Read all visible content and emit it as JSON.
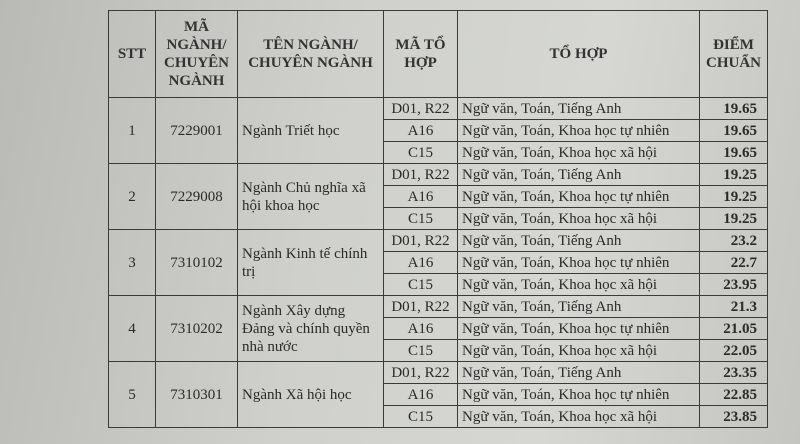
{
  "headers": {
    "stt": "STT",
    "ma_nganh": "MÃ NGÀNH/ CHUYÊN NGÀNH",
    "ten_nganh": "TÊN NGÀNH/ CHUYÊN NGÀNH",
    "ma_to_hop": "MÃ TỔ HỢP",
    "to_hop": "TỔ HỢP",
    "diem_chuan": "ĐIỂM CHUẨN"
  },
  "groups": [
    {
      "stt": "1",
      "code": "7229001",
      "name": "Ngành Triết học",
      "rows": [
        {
          "combo": "D01, R22",
          "subjects": "Ngữ văn, Toán, Tiếng Anh",
          "score": "19.65"
        },
        {
          "combo": "A16",
          "subjects": "Ngữ văn, Toán, Khoa học tự nhiên",
          "score": "19.65"
        },
        {
          "combo": "C15",
          "subjects": "Ngữ văn, Toán, Khoa học xã hội",
          "score": "19.65"
        }
      ]
    },
    {
      "stt": "2",
      "code": "7229008",
      "name": "Ngành Chủ nghĩa xã hội khoa học",
      "rows": [
        {
          "combo": "D01, R22",
          "subjects": "Ngữ văn, Toán, Tiếng Anh",
          "score": "19.25"
        },
        {
          "combo": "A16",
          "subjects": "Ngữ văn, Toán, Khoa học tự nhiên",
          "score": "19.25"
        },
        {
          "combo": "C15",
          "subjects": "Ngữ văn, Toán, Khoa học xã hội",
          "score": "19.25"
        }
      ]
    },
    {
      "stt": "3",
      "code": "7310102",
      "name": "Ngành Kinh tế chính trị",
      "rows": [
        {
          "combo": "D01, R22",
          "subjects": "Ngữ văn, Toán, Tiếng Anh",
          "score": "23.2"
        },
        {
          "combo": "A16",
          "subjects": "Ngữ văn, Toán, Khoa học tự nhiên",
          "score": "22.7"
        },
        {
          "combo": "C15",
          "subjects": "Ngữ văn, Toán, Khoa học xã hội",
          "score": "23.95"
        }
      ]
    },
    {
      "stt": "4",
      "code": "7310202",
      "name": "Ngành Xây dựng Đảng và chính quyền nhà nước",
      "rows": [
        {
          "combo": "D01, R22",
          "subjects": "Ngữ văn, Toán, Tiếng Anh",
          "score": "21.3"
        },
        {
          "combo": "A16",
          "subjects": "Ngữ văn, Toán, Khoa học tự nhiên",
          "score": "21.05"
        },
        {
          "combo": "C15",
          "subjects": "Ngữ văn, Toán, Khoa học xã hội",
          "score": "22.05"
        }
      ]
    },
    {
      "stt": "5",
      "code": "7310301",
      "name": "Ngành Xã hội học",
      "rows": [
        {
          "combo": "D01, R22",
          "subjects": "Ngữ văn, Toán, Tiếng Anh",
          "score": "23.35"
        },
        {
          "combo": "A16",
          "subjects": "Ngữ văn, Toán, Khoa học tự nhiên",
          "score": "22.85"
        },
        {
          "combo": "C15",
          "subjects": "Ngữ văn, Toán, Khoa học xã hội",
          "score": "23.85"
        }
      ]
    }
  ]
}
